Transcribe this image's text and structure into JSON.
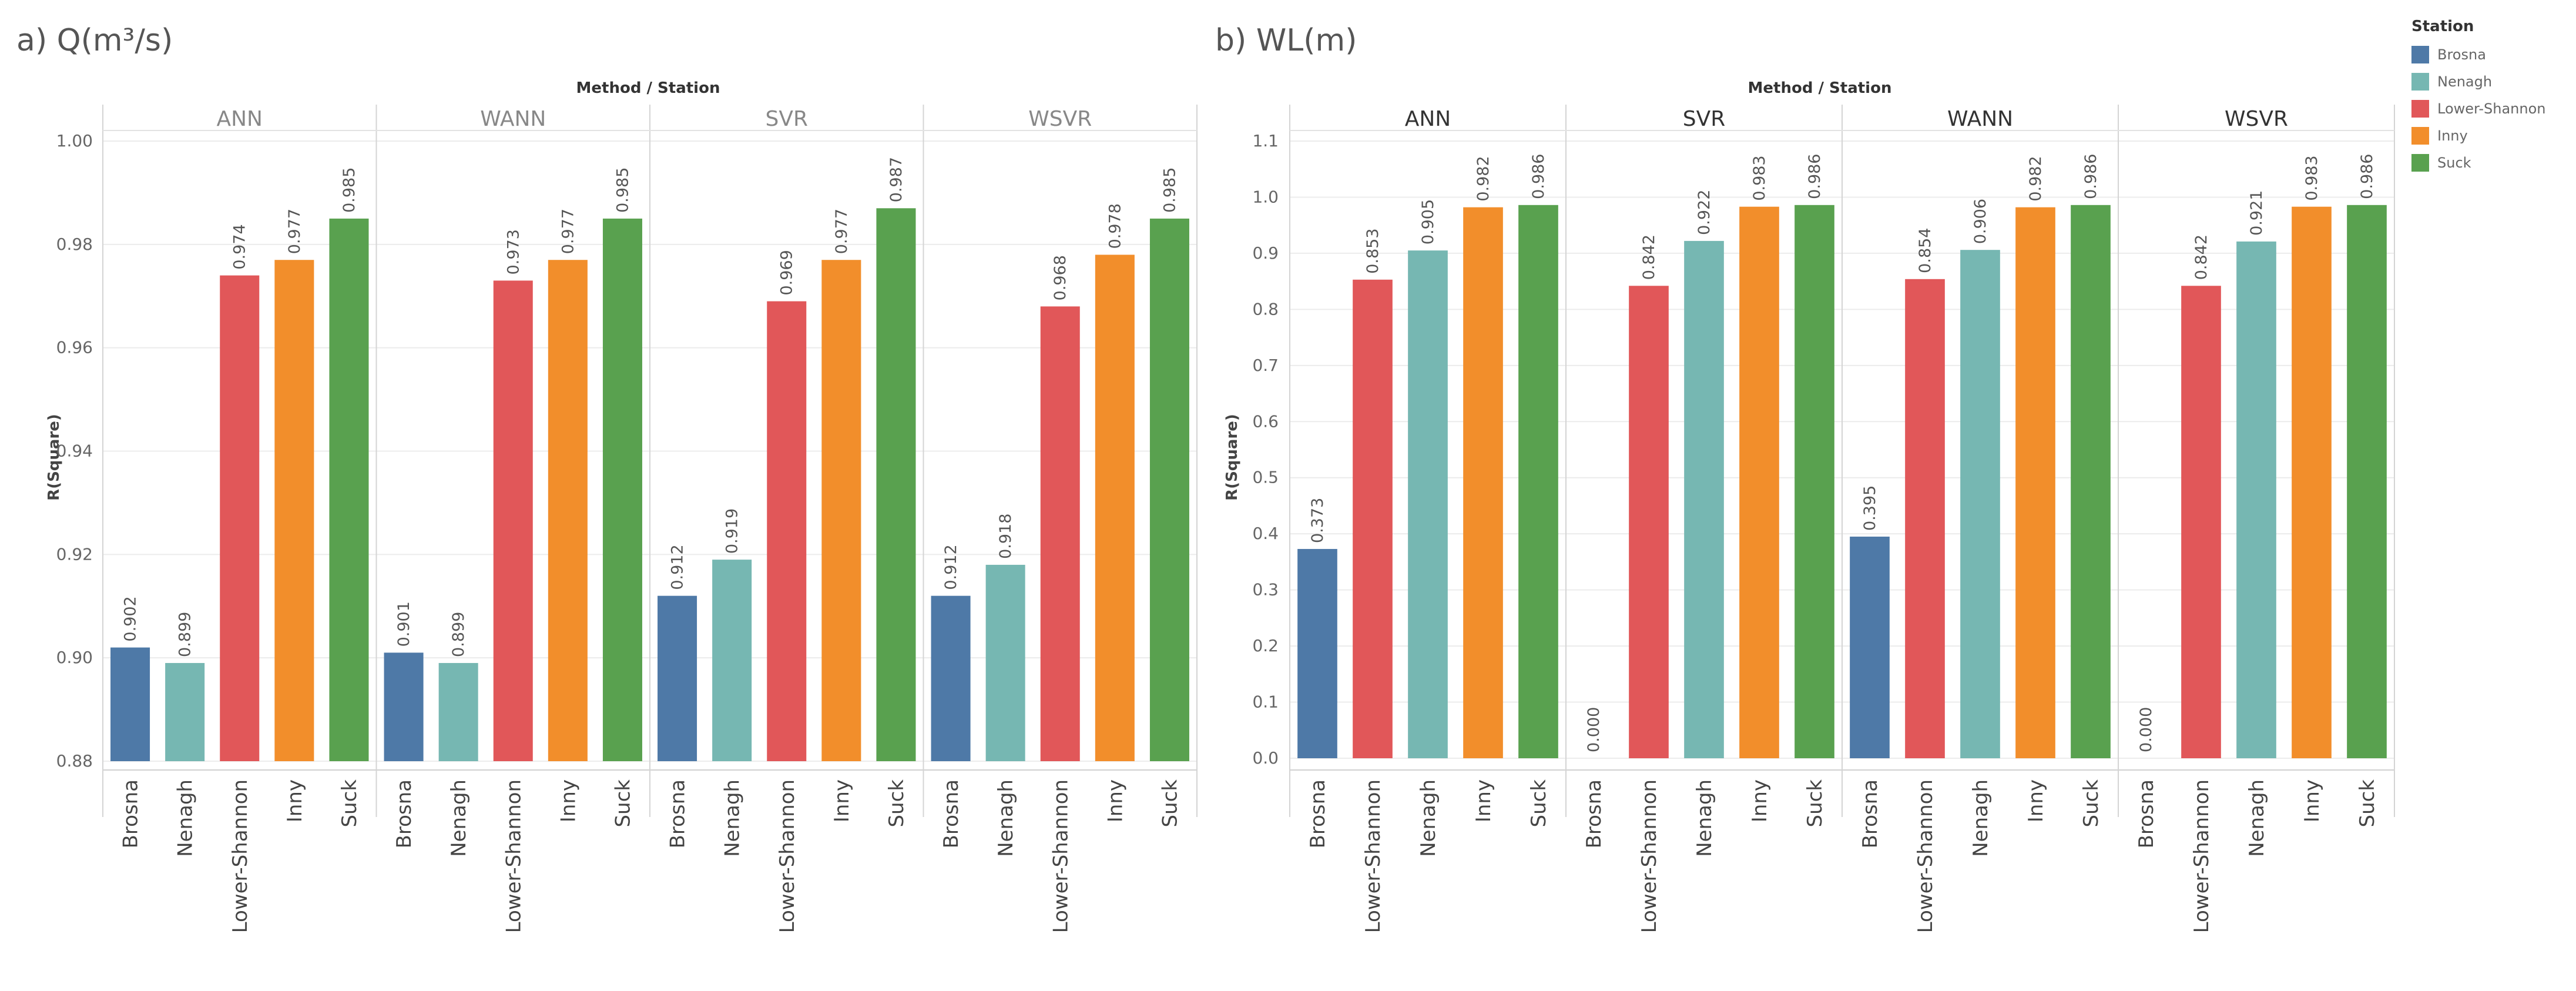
{
  "chart_data": [
    {
      "type": "bar",
      "title": "a) Q(m³/s)",
      "header": "Method / Station",
      "ylabel": "R(Square)",
      "ylim": [
        0.88,
        1.0
      ],
      "yticks": [
        "0.88",
        "0.90",
        "0.92",
        "0.94",
        "0.96",
        "0.98",
        "1.00"
      ],
      "ytick_values": [
        0.88,
        0.9,
        0.92,
        0.94,
        0.96,
        0.98,
        1.0
      ],
      "panels": [
        {
          "method": "ANN",
          "categories": [
            "Brosna",
            "Nenagh",
            "Lower-Shannon",
            "Inny",
            "Suck"
          ],
          "values": [
            0.902,
            0.899,
            0.974,
            0.977,
            0.985
          ],
          "labels": [
            "0.902",
            "0.899",
            "0.974",
            "0.977",
            "0.985"
          ]
        },
        {
          "method": "WANN",
          "categories": [
            "Brosna",
            "Nenagh",
            "Lower-Shannon",
            "Inny",
            "Suck"
          ],
          "values": [
            0.901,
            0.899,
            0.973,
            0.977,
            0.985
          ],
          "labels": [
            "0.901",
            "0.899",
            "0.973",
            "0.977",
            "0.985"
          ]
        },
        {
          "method": "SVR",
          "categories": [
            "Brosna",
            "Nenagh",
            "Lower-Shannon",
            "Inny",
            "Suck"
          ],
          "values": [
            0.912,
            0.919,
            0.969,
            0.977,
            0.987
          ],
          "labels": [
            "0.912",
            "0.919",
            "0.969",
            "0.977",
            "0.987"
          ]
        },
        {
          "method": "WSVR",
          "categories": [
            "Brosna",
            "Nenagh",
            "Lower-Shannon",
            "Inny",
            "Suck"
          ],
          "values": [
            0.912,
            0.918,
            0.968,
            0.978,
            0.985
          ],
          "labels": [
            "0.912",
            "0.918",
            "0.968",
            "0.978",
            "0.985"
          ]
        }
      ]
    },
    {
      "type": "bar",
      "title": "b) WL(m)",
      "header": "Method / Station",
      "ylabel": "R(Square)",
      "ylim": [
        0.0,
        1.1
      ],
      "yticks": [
        "0.0",
        "0.1",
        "0.2",
        "0.3",
        "0.4",
        "0.5",
        "0.6",
        "0.7",
        "0.8",
        "0.9",
        "1.0",
        "1.1"
      ],
      "ytick_values": [
        0.0,
        0.1,
        0.2,
        0.3,
        0.4,
        0.5,
        0.6,
        0.7,
        0.8,
        0.9,
        1.0,
        1.1
      ],
      "panels": [
        {
          "method": "ANN",
          "categories": [
            "Brosna",
            "Lower-Shannon",
            "Nenagh",
            "Inny",
            "Suck"
          ],
          "values": [
            0.373,
            0.853,
            0.905,
            0.982,
            0.986
          ],
          "labels": [
            "0.373",
            "0.853",
            "0.905",
            "0.982",
            "0.986"
          ]
        },
        {
          "method": "SVR",
          "categories": [
            "Brosna",
            "Lower-Shannon",
            "Nenagh",
            "Inny",
            "Suck"
          ],
          "values": [
            0.0,
            0.842,
            0.922,
            0.983,
            0.986
          ],
          "labels": [
            "0.000",
            "0.842",
            "0.922",
            "0.983",
            "0.986"
          ]
        },
        {
          "method": "WANN",
          "categories": [
            "Brosna",
            "Lower-Shannon",
            "Nenagh",
            "Inny",
            "Suck"
          ],
          "values": [
            0.395,
            0.854,
            0.906,
            0.982,
            0.986
          ],
          "labels": [
            "0.395",
            "0.854",
            "0.906",
            "0.982",
            "0.986"
          ]
        },
        {
          "method": "WSVR",
          "categories": [
            "Brosna",
            "Lower-Shannon",
            "Nenagh",
            "Inny",
            "Suck"
          ],
          "values": [
            0.0,
            0.842,
            0.921,
            0.983,
            0.986
          ],
          "labels": [
            "0.000",
            "0.842",
            "0.921",
            "0.983",
            "0.986"
          ]
        }
      ]
    }
  ],
  "legend": {
    "title": "Station",
    "items": [
      {
        "label": "Brosna",
        "color": "#4e79a7"
      },
      {
        "label": "Nenagh",
        "color": "#76b7b2"
      },
      {
        "label": "Lower-Shannon",
        "color": "#e15759"
      },
      {
        "label": "Inny",
        "color": "#f28e2b"
      },
      {
        "label": "Suck",
        "color": "#59a14f"
      }
    ]
  },
  "colors": {
    "Brosna": "#4e79a7",
    "Nenagh": "#76b7b2",
    "Lower-Shannon": "#e15759",
    "Inny": "#f28e2b",
    "Suck": "#59a14f"
  }
}
